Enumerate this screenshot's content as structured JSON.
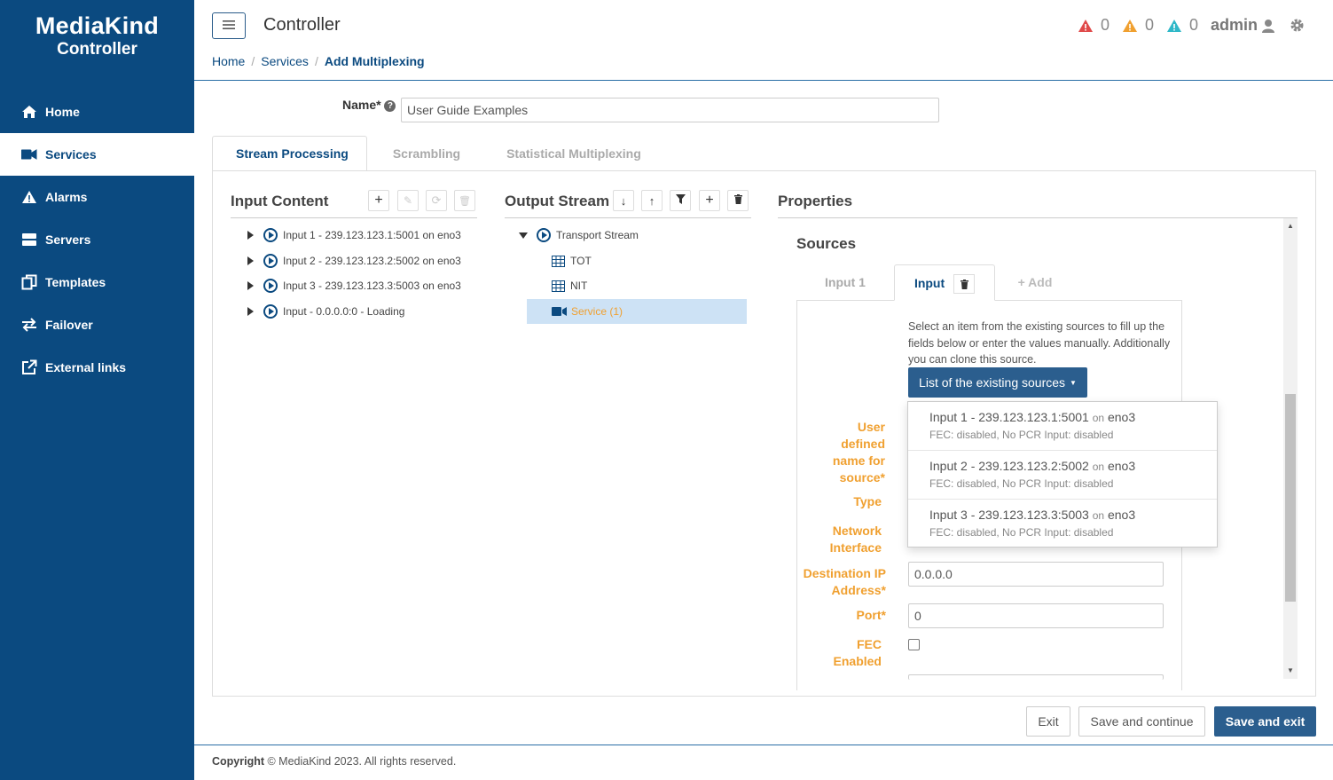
{
  "brand": {
    "logo": "MediaKind",
    "sub": "Controller"
  },
  "nav": [
    {
      "label": "Home",
      "icon": "home-icon",
      "active": false
    },
    {
      "label": "Services",
      "icon": "video-camera-icon",
      "active": true
    },
    {
      "label": "Alarms",
      "icon": "warning-icon",
      "active": false
    },
    {
      "label": "Servers",
      "icon": "server-icon",
      "active": false
    },
    {
      "label": "Templates",
      "icon": "copy-icon",
      "active": false
    },
    {
      "label": "Failover",
      "icon": "swap-icon",
      "active": false
    },
    {
      "label": "External links",
      "icon": "external-link-icon",
      "active": false
    }
  ],
  "header": {
    "title": "Controller",
    "breadcrumb": [
      "Home",
      "Services",
      "Add Multiplexing"
    ],
    "alarms": [
      {
        "count": "0",
        "color": "#e04a4a",
        "icon": "critical-alarm-icon"
      },
      {
        "count": "0",
        "color": "#f0a030",
        "icon": "major-alarm-icon"
      },
      {
        "count": "0",
        "color": "#2fb8c8",
        "icon": "minor-alarm-icon"
      }
    ],
    "user": "admin"
  },
  "form": {
    "name_label": "Name*",
    "name_value": "User Guide Examples"
  },
  "tabs": [
    "Stream Processing",
    "Scrambling",
    "Statistical Multiplexing"
  ],
  "input_content": {
    "title": "Input Content",
    "items": [
      "Input 1 - 239.123.123.1:5001 on eno3",
      "Input 2 - 239.123.123.2:5002 on eno3",
      "Input 3 - 239.123.123.3:5003 on eno3",
      "Input - 0.0.0.0:0 - Loading"
    ]
  },
  "output_stream": {
    "title": "Output Stream",
    "root": "Transport Stream",
    "children": [
      "TOT",
      "NIT"
    ],
    "service": "Service (1)"
  },
  "properties": {
    "title": "Properties",
    "sources_title": "Sources",
    "tabs": [
      "Input 1",
      "Input",
      "+ Add"
    ],
    "help": "Select an item from the existing sources to fill up the fields below or enter the values manually. Additionally you can clone this source.",
    "dropdown_label": "List of the existing sources",
    "dropdown_items": [
      {
        "name": "Input 1 - 239.123.123.1:5001",
        "on": "on",
        "iface": "eno3",
        "meta": "FEC: disabled, No PCR Input: disabled"
      },
      {
        "name": "Input 2 - 239.123.123.2:5002",
        "on": "on",
        "iface": "eno3",
        "meta": "FEC: disabled, No PCR Input: disabled"
      },
      {
        "name": "Input 3 - 239.123.123.3:5003",
        "on": "on",
        "iface": "eno3",
        "meta": "FEC: disabled, No PCR Input: disabled"
      }
    ],
    "fields": {
      "user_defined_name": "User defined name for source*",
      "type": "Type",
      "network_interface": "Network Interface",
      "destination_ip": "Destination IP Address*",
      "destination_ip_value": "0.0.0.0",
      "port": "Port*",
      "port_value": "0",
      "fec": "FEC Enabled"
    }
  },
  "actions": {
    "exit": "Exit",
    "save_continue": "Save and continue",
    "save_exit": "Save and exit"
  },
  "footer": {
    "copyright": "Copyright",
    "text": " © MediaKind 2023. All rights reserved."
  }
}
